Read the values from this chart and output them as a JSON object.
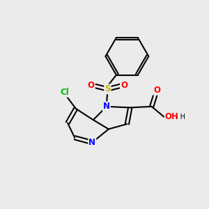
{
  "bg_color": "#ebebeb",
  "bond_color": "#000000",
  "bond_width": 1.5,
  "atoms": {
    "N": {
      "color": "#0000ff"
    },
    "Cl": {
      "color": "#00bb00"
    },
    "S": {
      "color": "#bbbb00"
    },
    "O": {
      "color": "#ff0000"
    },
    "C": {
      "color": "#000000"
    }
  },
  "figsize": [
    3.0,
    3.0
  ],
  "dpi": 100
}
